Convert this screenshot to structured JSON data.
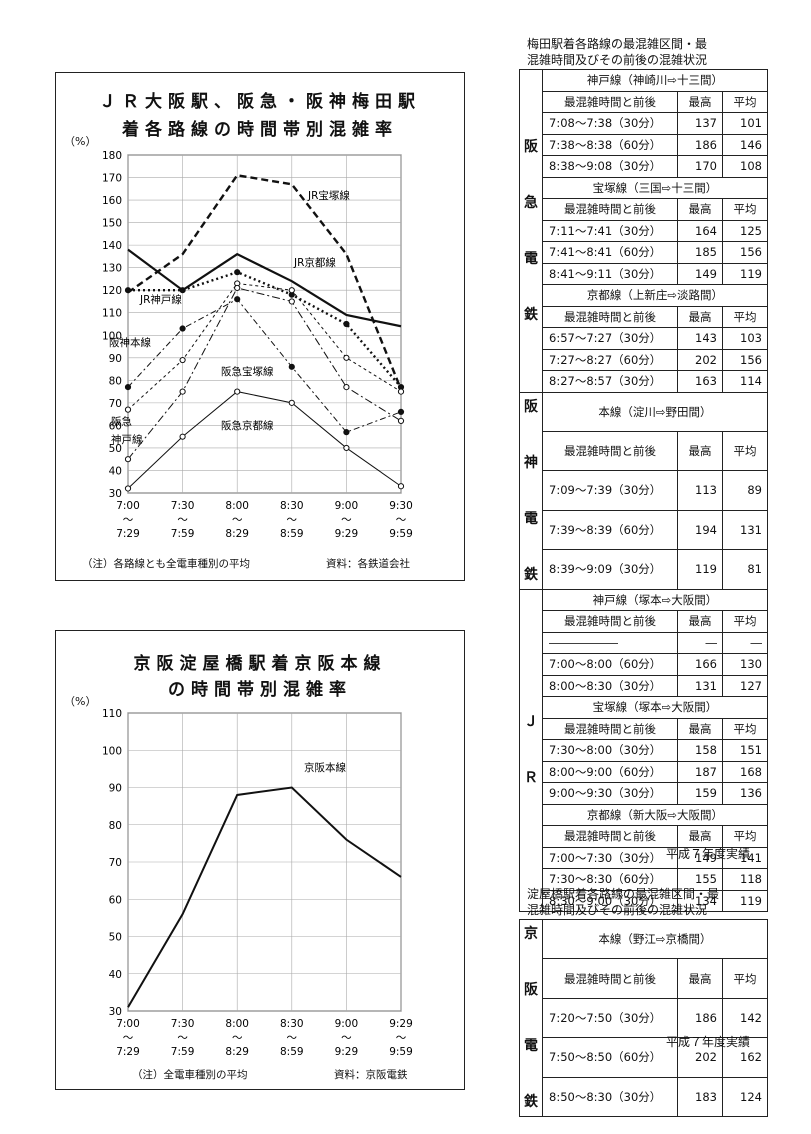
{
  "chart1": {
    "title_line1": "ＪＲ大阪駅、阪急・阪神梅田駅",
    "title_line2": "着各路線の時間帯別混雑率",
    "unit": "（%）",
    "note": "（注）各路線とも全電車種別の平均",
    "source": "資料：各鉄道会社",
    "x_labels": [
      [
        "7:00",
        "〜",
        "7:29"
      ],
      [
        "7:30",
        "〜",
        "7:59"
      ],
      [
        "8:00",
        "〜",
        "8:29"
      ],
      [
        "8:30",
        "〜",
        "8:59"
      ],
      [
        "9:00",
        "〜",
        "9:29"
      ],
      [
        "9:30",
        "〜",
        "9:59"
      ]
    ],
    "chart_data": {
      "type": "line",
      "ylim": [
        30,
        180
      ],
      "yticks": [
        30,
        40,
        50,
        60,
        70,
        80,
        90,
        100,
        110,
        120,
        130,
        140,
        150,
        160,
        170,
        180
      ],
      "grid": true,
      "series": [
        {
          "name": "JR宝塚線",
          "values": [
            119,
            136,
            171,
            167,
            136,
            76
          ]
        },
        {
          "name": "JR京都線",
          "values": [
            138,
            120,
            136,
            124,
            109,
            104
          ]
        },
        {
          "name": "JR神戸線",
          "values": [
            120,
            120,
            128,
            118,
            105,
            77
          ]
        },
        {
          "name": "阪神本線",
          "values": [
            77,
            103,
            116,
            86,
            57,
            66
          ]
        },
        {
          "name": "阪急宝塚線",
          "values": [
            67,
            89,
            123,
            120,
            90,
            75
          ]
        },
        {
          "name": "阪急神戸線",
          "values": [
            45,
            75,
            121,
            115,
            77,
            62
          ]
        },
        {
          "name": "阪急京都線",
          "values": [
            32,
            55,
            75,
            70,
            50,
            33
          ]
        }
      ]
    },
    "labels": [
      "JR宝塚線",
      "JR京都線",
      "JR神戸線",
      "阪神本線",
      "阪急宝塚線",
      "阪急",
      "神戸線",
      "阪急京都線"
    ]
  },
  "chart2": {
    "title_line1": "京阪淀屋橋駅着京阪本線",
    "title_line2": "の時間帯別混雑率",
    "unit": "（%）",
    "note": "（注）全電車種別の平均",
    "source": "資料：京阪電鉄",
    "x_labels": [
      [
        "7:00",
        "〜",
        "7:29"
      ],
      [
        "7:30",
        "〜",
        "7:59"
      ],
      [
        "8:00",
        "〜",
        "8:29"
      ],
      [
        "8:30",
        "〜",
        "8:59"
      ],
      [
        "9:00",
        "〜",
        "9:29"
      ],
      [
        "9:29",
        "〜",
        "9:59"
      ]
    ],
    "chart_data": {
      "type": "line",
      "ylim": [
        30,
        110
      ],
      "yticks": [
        30,
        40,
        50,
        60,
        70,
        80,
        90,
        100,
        110
      ],
      "grid": true,
      "series": [
        {
          "name": "京阪本線",
          "values": [
            31,
            56,
            88,
            90,
            76,
            66
          ]
        }
      ]
    },
    "label": "京阪本線"
  },
  "table1": {
    "title_line1": "梅田駅着各路線の最混雑区間・最",
    "title_line2": "混雑時間及びその前後の混雑状況",
    "col_time": "最混雑時間と前後",
    "col_max": "最高",
    "col_avg": "平均",
    "footer": "平成７年度実績",
    "groups": [
      {
        "label": "阪急電鉄",
        "sections": [
          {
            "name": "神戸線（神崎川⇨十三間）",
            "rows": [
              [
                "7:08〜7:38（30分）",
                "137",
                "101"
              ],
              [
                "7:38〜8:38（60分）",
                "186",
                "146"
              ],
              [
                "8:38〜9:08（30分）",
                "170",
                "108"
              ]
            ]
          },
          {
            "name": "宝塚線（三国⇨十三間）",
            "rows": [
              [
                "7:11〜7:41（30分）",
                "164",
                "125"
              ],
              [
                "7:41〜8:41（60分）",
                "185",
                "156"
              ],
              [
                "8:41〜9:11（30分）",
                "149",
                "119"
              ]
            ]
          },
          {
            "name": "京都線（上新庄⇨淡路間）",
            "rows": [
              [
                "6:57〜7:27（30分）",
                "143",
                "103"
              ],
              [
                "7:27〜8:27（60分）",
                "202",
                "156"
              ],
              [
                "8:27〜8:57（30分）",
                "163",
                "114"
              ]
            ]
          }
        ]
      },
      {
        "label": "阪神電鉄",
        "sections": [
          {
            "name": "本線（淀川⇨野田間）",
            "rows": [
              [
                "7:09〜7:39（30分）",
                "113",
                "89"
              ],
              [
                "7:39〜8:39（60分）",
                "194",
                "131"
              ],
              [
                "8:39〜9:09（30分）",
                "119",
                "81"
              ]
            ]
          }
        ]
      },
      {
        "label": "ＪＲ",
        "sections": [
          {
            "name": "神戸線（塚本⇨大阪間）",
            "rows": [
              [
                "――――――",
                "―",
                "―"
              ],
              [
                "7:00〜8:00（60分）",
                "166",
                "130"
              ],
              [
                "8:00〜8:30（30分）",
                "131",
                "127"
              ]
            ]
          },
          {
            "name": "宝塚線（塚本⇨大阪間）",
            "rows": [
              [
                "7:30〜8:00（30分）",
                "158",
                "151"
              ],
              [
                "8:00〜9:00（60分）",
                "187",
                "168"
              ],
              [
                "9:00〜9:30（30分）",
                "159",
                "136"
              ]
            ]
          },
          {
            "name": "京都線（新大阪⇨大阪間）",
            "rows": [
              [
                "7:00〜7:30（30分）",
                "149",
                "141"
              ],
              [
                "7:30〜8:30（60分）",
                "155",
                "118"
              ],
              [
                "8:30〜9:00（30分）",
                "134",
                "119"
              ]
            ]
          }
        ]
      }
    ]
  },
  "table2": {
    "title_line1": "淀屋橋駅着各路線の最混雑区間・最",
    "title_line2": "混雑時間及びその前後の混雑状況",
    "col_time": "最混雑時間と前後",
    "col_max": "最高",
    "col_avg": "平均",
    "footer": "平成７年度実績",
    "groups": [
      {
        "label": "京阪電鉄",
        "sections": [
          {
            "name": "本線（野江⇨京橋間）",
            "rows": [
              [
                "7:20〜7:50（30分）",
                "186",
                "142"
              ],
              [
                "7:50〜8:50（60分）",
                "202",
                "162"
              ],
              [
                "8:50〜8:30（30分）",
                "183",
                "124"
              ]
            ]
          }
        ]
      }
    ]
  }
}
